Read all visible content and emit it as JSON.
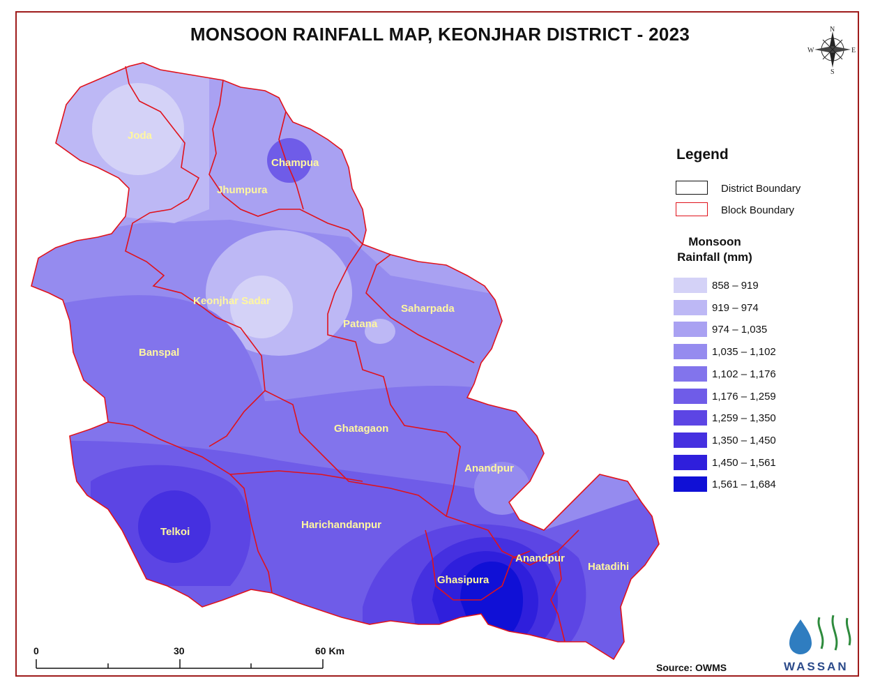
{
  "title": "MONSOON RAINFALL MAP, KEONJHAR DISTRICT - 2023",
  "compass": {
    "n": "N",
    "s": "S",
    "e": "E",
    "w": "W"
  },
  "legend": {
    "title": "Legend",
    "district_boundary": "District Boundary",
    "block_boundary": "Block Boundary",
    "rainfall_title_line1": "Monsoon",
    "rainfall_title_line2": "Rainfall (mm)",
    "classes": [
      {
        "label": "858 – 919",
        "color": "#d4d2f7"
      },
      {
        "label": "919 – 974",
        "color": "#bdb8f5"
      },
      {
        "label": "974 – 1,035",
        "color": "#a9a1f2"
      },
      {
        "label": "1,035 – 1,102",
        "color": "#958bef"
      },
      {
        "label": "1,102 – 1,176",
        "color": "#8274ec"
      },
      {
        "label": "1,176 – 1,259",
        "color": "#6f5ce8"
      },
      {
        "label": "1,259 – 1,350",
        "color": "#5c45e4"
      },
      {
        "label": "1,350 – 1,450",
        "color": "#4530e0"
      },
      {
        "label": "1,450 – 1,561",
        "color": "#2f1fdc"
      },
      {
        "label": "1,561 – 1,684",
        "color": "#1010d6"
      }
    ]
  },
  "blocks": {
    "joda": "Joda",
    "champua": "Champua",
    "jhumpura": "Jhumpura",
    "keonjhar_sadar": "Keonjhar Sadar",
    "saharpada": "Saharpada",
    "patana": "Patana",
    "banspal": "Banspal",
    "ghatagaon": "Ghatagaon",
    "anandpur_north": "Anandpur",
    "telkoi": "Telkoi",
    "harichandanpur": "Harichandanpur",
    "anandpur_south": "Anandpur",
    "ghasipura": "Ghasipura",
    "hatadihi": "Hatadihi"
  },
  "scale_bar": {
    "zero": "0",
    "mid": "30",
    "end": "60 Km"
  },
  "source": "Source: OWMS",
  "logo_text": "WASSAN",
  "colors": {
    "frame": "#9e1b1b",
    "block_boundary": "#e0121b",
    "label": "#fff7a0"
  }
}
